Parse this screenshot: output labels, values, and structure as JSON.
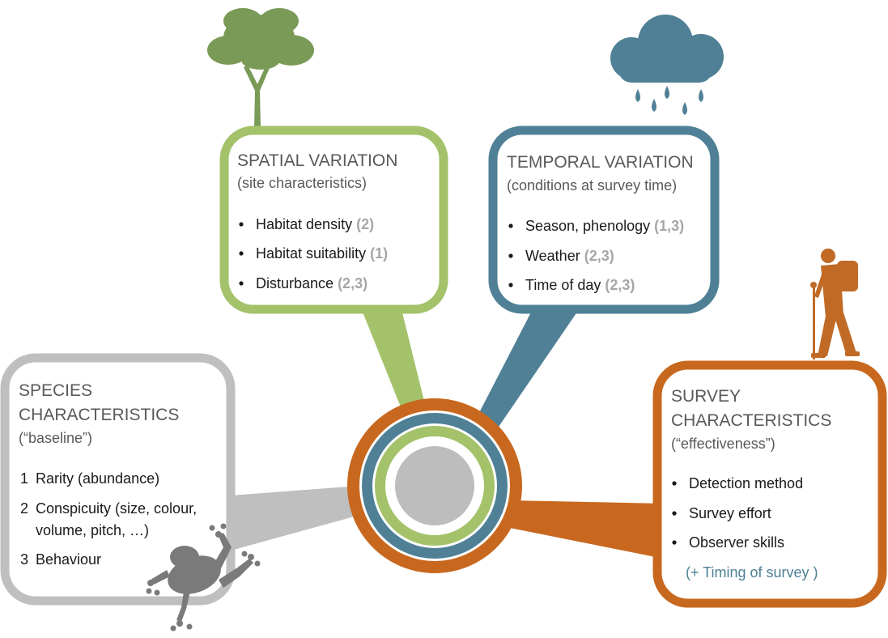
{
  "colors": {
    "spatial": "#a3c26a",
    "temporal": "#4f8096",
    "species": "#bfbfbf",
    "survey": "#c8681e",
    "center": "#bdbdbd",
    "tree": "#7a9a58",
    "cloud": "#4f8096",
    "frog": "#7a7a7a",
    "hiker": "#c06a26"
  },
  "icons": [
    "tree-icon",
    "rain-cloud-icon",
    "hiker-icon",
    "frog-icon"
  ],
  "spatial": {
    "title": "SPATIAL VARIATION",
    "subtitle": "(site characteristics)",
    "items": [
      {
        "label": "Habitat density",
        "ref": "(2)"
      },
      {
        "label": "Habitat suitability",
        "ref": "(1)"
      },
      {
        "label": "Disturbance",
        "ref": "(2,3)"
      }
    ]
  },
  "temporal": {
    "title": "TEMPORAL VARIATION",
    "subtitle": "(conditions at survey time)",
    "items": [
      {
        "label": "Season, phenology",
        "ref": "(1,3)"
      },
      {
        "label": "Weather",
        "ref": "(2,3)"
      },
      {
        "label": "Time of day",
        "ref": "(2,3)"
      }
    ]
  },
  "species": {
    "title_line1": "SPECIES",
    "title_line2": "CHARACTERISTICS",
    "subtitle": "(“baseline”)",
    "items": [
      {
        "num": "1",
        "line1": "Rarity (abundance)",
        "line2": ""
      },
      {
        "num": "2",
        "line1": "Conspicuity (size, colour,",
        "line2": "volume, pitch, …)"
      },
      {
        "num": "3",
        "line1": "Behaviour",
        "line2": ""
      }
    ]
  },
  "survey": {
    "title_line1": "SURVEY",
    "title_line2": "CHARACTERISTICS",
    "subtitle": "(“effectiveness”)",
    "items": [
      {
        "label": "Detection method"
      },
      {
        "label": "Survey effort"
      },
      {
        "label": "Observer skills"
      }
    ],
    "note": "(+ Timing of survey )"
  }
}
